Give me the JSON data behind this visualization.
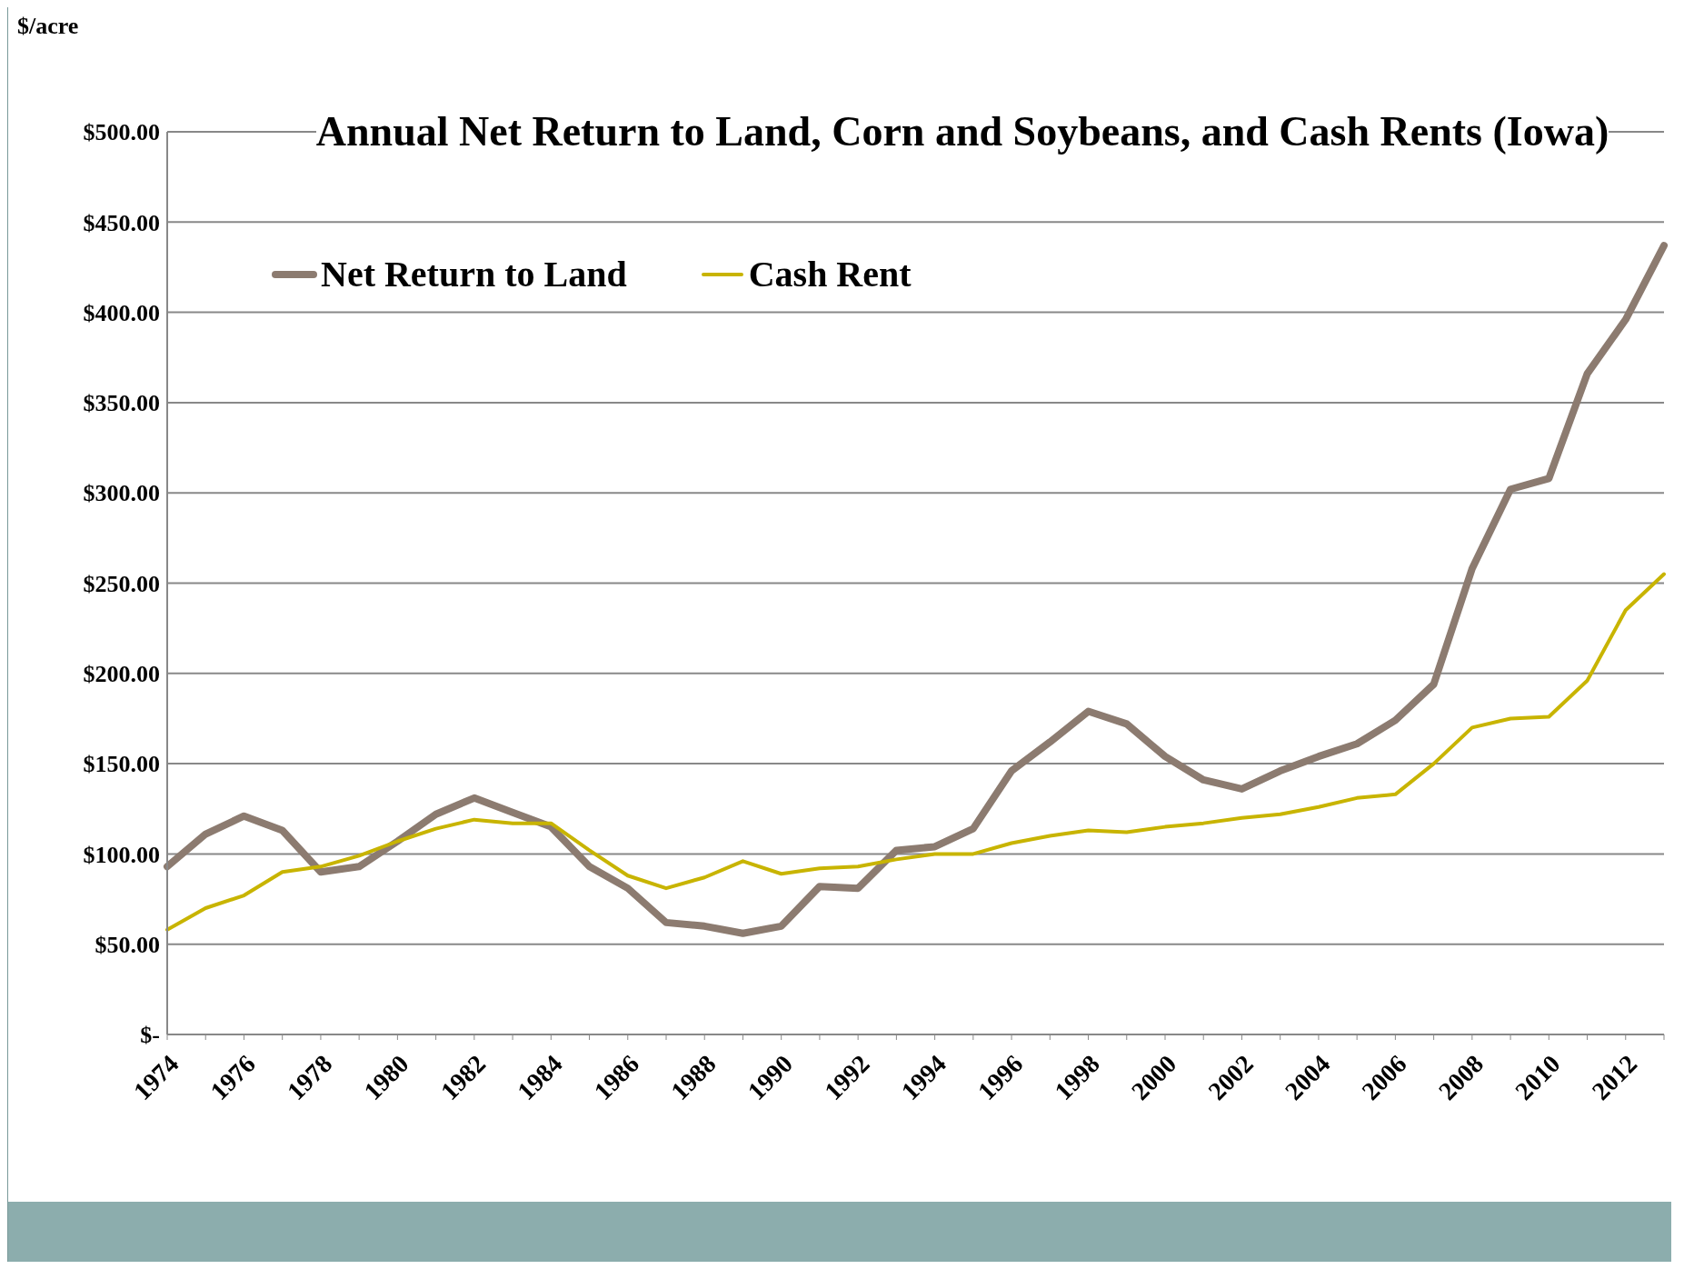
{
  "chart_data": {
    "type": "line",
    "title": "Annual Net Return to Land, Corn and Soybeans, and Cash Rents (Iowa)",
    "ylabel": "$/acre",
    "categories": [
      "1974",
      null,
      "1976",
      null,
      "1978",
      null,
      "1980",
      null,
      "1982",
      null,
      "1984",
      null,
      "1986",
      null,
      "1988",
      null,
      "1990",
      null,
      "1992",
      null,
      "1994",
      null,
      "1996",
      null,
      "1998",
      null,
      "2000",
      null,
      "2002",
      null,
      "2004",
      null,
      "2006",
      null,
      "2008",
      null,
      "2010",
      null,
      "2012",
      null
    ],
    "series": [
      {
        "name": "Net Return to Land",
        "color": "#8c7b70",
        "values": [
          93,
          111,
          121,
          113,
          90,
          93,
          107,
          122,
          131,
          123,
          115,
          93,
          81,
          62,
          60,
          56,
          60,
          82,
          81,
          102,
          104,
          114,
          146,
          162,
          179,
          172,
          154,
          141,
          136,
          146,
          154,
          161,
          174,
          194,
          258,
          302,
          308,
          366,
          396,
          437
        ]
      },
      {
        "name": "Cash Rent",
        "color": "#c8b400",
        "values": [
          58,
          70,
          77,
          90,
          93,
          99,
          107,
          114,
          119,
          117,
          117,
          102,
          88,
          81,
          87,
          96,
          89,
          92,
          93,
          97,
          100,
          100,
          106,
          110,
          113,
          112,
          115,
          117,
          120,
          122,
          126,
          131,
          133,
          150,
          170,
          175,
          176,
          196,
          235,
          255
        ]
      }
    ],
    "ylim": [
      0,
      500
    ],
    "yticks": [
      {
        "value": 0,
        "label": "$-"
      },
      {
        "value": 50,
        "label": "$50.00"
      },
      {
        "value": 100,
        "label": "$100.00"
      },
      {
        "value": 150,
        "label": "$150.00"
      },
      {
        "value": 200,
        "label": "$200.00"
      },
      {
        "value": 250,
        "label": "$250.00"
      },
      {
        "value": 300,
        "label": "$300.00"
      },
      {
        "value": 350,
        "label": "$350.00"
      },
      {
        "value": 400,
        "label": "$400.00"
      },
      {
        "value": 450,
        "label": "$450.00"
      },
      {
        "value": 500,
        "label": "$500.00"
      }
    ],
    "grid": "y",
    "legend": "top left",
    "marker": "none",
    "line_style": "solid"
  }
}
